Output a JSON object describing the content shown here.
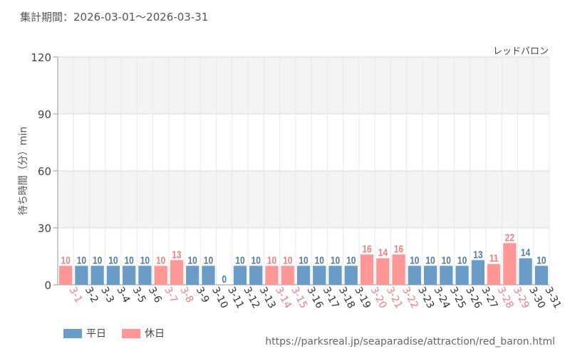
{
  "header": {
    "period_label": "集計期間：2026-03-01～2026-03-31",
    "attraction_name": "レッドバロン"
  },
  "legend": {
    "weekday_label": "平日",
    "holiday_label": "休日"
  },
  "source": {
    "url_text": "https://parksreal.jp/seaparadise/attraction/red_baron.html"
  },
  "colors": {
    "weekday": "#6a9cc7",
    "holiday": "#ff9797",
    "weekday_text": "#4a7cad",
    "holiday_text": "#f08080"
  },
  "chart_data": {
    "type": "bar",
    "ylabel": "待ち時間（分）min",
    "ylim": [
      0,
      120
    ],
    "yticks": [
      0,
      30,
      60,
      90,
      120
    ],
    "grid": true,
    "legend_position": "bottom-left",
    "categories": [
      "3-1",
      "3-2",
      "3-3",
      "3-4",
      "3-5",
      "3-6",
      "3-7",
      "3-8",
      "3-9",
      "3-10",
      "3-11",
      "3-12",
      "3-13",
      "3-14",
      "3-15",
      "3-16",
      "3-17",
      "3-18",
      "3-19",
      "3-20",
      "3-21",
      "3-22",
      "3-23",
      "3-24",
      "3-25",
      "3-26",
      "3-27",
      "3-28",
      "3-29",
      "3-30",
      "3-31"
    ],
    "values": [
      10,
      10,
      10,
      10,
      10,
      10,
      10,
      13,
      10,
      10,
      0,
      10,
      10,
      10,
      10,
      10,
      10,
      10,
      10,
      16,
      14,
      16,
      10,
      10,
      10,
      10,
      13,
      11,
      22,
      14,
      10
    ],
    "day_types": [
      "holiday",
      "weekday",
      "weekday",
      "weekday",
      "weekday",
      "weekday",
      "holiday",
      "holiday",
      "weekday",
      "weekday",
      "weekday",
      "weekday",
      "weekday",
      "holiday",
      "holiday",
      "weekday",
      "weekday",
      "weekday",
      "weekday",
      "holiday",
      "holiday",
      "holiday",
      "weekday",
      "weekday",
      "weekday",
      "weekday",
      "weekday",
      "holiday",
      "holiday",
      "weekday",
      "weekday"
    ],
    "series": [
      {
        "name": "平日",
        "type_key": "weekday"
      },
      {
        "name": "休日",
        "type_key": "holiday"
      }
    ]
  }
}
